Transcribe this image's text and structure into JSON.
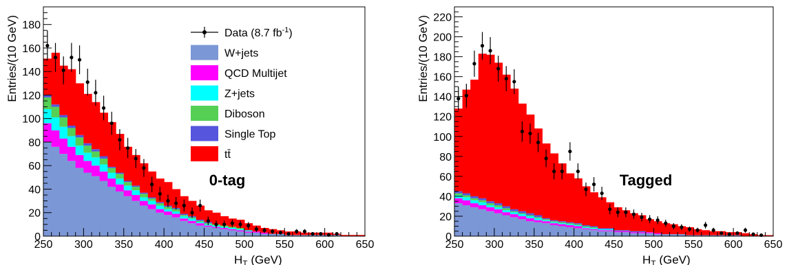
{
  "chart_data": [
    {
      "type": "bar",
      "stacked": true,
      "x": [
        255,
        265,
        275,
        285,
        295,
        305,
        315,
        325,
        335,
        345,
        355,
        365,
        375,
        385,
        395,
        405,
        415,
        425,
        435,
        445,
        455,
        465,
        475,
        485,
        495,
        505,
        515,
        525,
        535,
        545,
        555,
        565,
        575,
        585,
        595,
        605,
        615,
        625,
        635,
        645
      ],
      "xlim": [
        250,
        650
      ],
      "ylim": [
        0,
        195
      ],
      "xticks": [
        "250",
        "300",
        "350",
        "400",
        "450",
        "500",
        "550",
        "600",
        "650"
      ],
      "yticks": [
        "0",
        "20",
        "40",
        "60",
        "80",
        "100",
        "120",
        "140",
        "160",
        "180"
      ],
      "xlabel": "H",
      "xlabel_sub": "T",
      "xlabel_unit": "(GeV)",
      "ylabel": "Entries/(10 GeV)",
      "region_label": "0-tag",
      "series": [
        {
          "name": "W+jets",
          "color": "#7b97d6",
          "values": [
            80,
            76,
            70,
            64,
            58,
            54,
            51,
            47,
            42,
            38,
            34,
            30,
            26,
            23,
            20,
            18,
            16,
            13,
            11,
            9,
            8,
            7,
            6,
            5,
            4,
            3,
            3,
            2,
            2,
            2,
            1,
            1,
            1,
            1,
            1,
            1,
            1,
            0,
            0,
            0
          ]
        },
        {
          "name": "QCD Multijet",
          "color": "#ff00ff",
          "values": [
            16,
            14,
            13,
            12,
            11,
            10,
            9,
            8,
            7,
            6,
            5,
            5,
            4,
            4,
            3,
            3,
            3,
            2,
            2,
            2,
            1,
            1,
            1,
            1,
            1,
            1,
            1,
            1,
            0,
            0,
            0,
            0,
            0,
            0,
            0,
            0,
            0,
            0,
            0,
            0
          ]
        },
        {
          "name": "Z+jets",
          "color": "#00ffff",
          "values": [
            12,
            11,
            10,
            9,
            8,
            7,
            7,
            6,
            5,
            5,
            4,
            4,
            3,
            3,
            3,
            2,
            2,
            2,
            2,
            1,
            1,
            1,
            1,
            1,
            1,
            1,
            0,
            0,
            0,
            0,
            0,
            0,
            0,
            0,
            0,
            0,
            0,
            0,
            0,
            0
          ]
        },
        {
          "name": "Diboson",
          "color": "#55d055",
          "values": [
            10,
            9,
            8,
            7,
            7,
            6,
            5,
            5,
            4,
            4,
            3,
            3,
            3,
            2,
            2,
            2,
            2,
            1,
            1,
            1,
            1,
            1,
            1,
            1,
            1,
            0,
            0,
            0,
            0,
            0,
            0,
            0,
            0,
            0,
            0,
            0,
            0,
            0,
            0,
            0
          ]
        },
        {
          "name": "Single Top",
          "color": "#5555dd",
          "values": [
            2,
            2,
            2,
            2,
            2,
            2,
            2,
            2,
            1,
            1,
            1,
            1,
            1,
            1,
            1,
            1,
            1,
            1,
            1,
            1,
            1,
            0,
            0,
            0,
            0,
            0,
            0,
            0,
            0,
            0,
            0,
            0,
            0,
            0,
            0,
            0,
            0,
            0,
            0,
            0
          ]
        },
        {
          "name": "tt̄",
          "color": "#ff0000",
          "values": [
            31,
            44,
            42,
            48,
            44,
            42,
            40,
            37,
            38,
            33,
            29,
            26,
            25,
            22,
            20,
            20,
            16,
            15,
            13,
            12,
            10,
            10,
            8,
            7,
            7,
            6,
            5,
            4,
            4,
            3,
            3,
            3,
            2,
            2,
            2,
            2,
            1,
            1,
            1,
            1
          ]
        }
      ],
      "data_points": {
        "name": "Data (8.7 fb",
        "name_sup": "-1",
        "name_end": ")",
        "y": [
          162,
          152,
          141,
          152,
          150,
          131,
          122,
          109,
          96,
          82,
          75,
          66,
          58,
          44,
          36,
          30,
          28,
          26,
          20,
          26,
          13,
          10,
          10,
          11,
          10,
          9,
          6,
          5,
          4,
          3,
          2,
          4,
          4,
          2,
          2,
          1,
          2,
          0,
          0,
          0
        ]
      },
      "legend_position": "top-right"
    },
    {
      "type": "bar",
      "stacked": true,
      "x": [
        255,
        265,
        275,
        285,
        295,
        305,
        315,
        325,
        335,
        345,
        355,
        365,
        375,
        385,
        395,
        405,
        415,
        425,
        435,
        445,
        455,
        465,
        475,
        485,
        495,
        505,
        515,
        525,
        535,
        545,
        555,
        565,
        575,
        585,
        595,
        605,
        615,
        625,
        635,
        645
      ],
      "xlim": [
        250,
        650
      ],
      "ylim": [
        0,
        230
      ],
      "xticks": [
        "250",
        "300",
        "350",
        "400",
        "450",
        "500",
        "550",
        "600",
        "650"
      ],
      "yticks": [
        "0",
        "20",
        "40",
        "60",
        "80",
        "100",
        "120",
        "140",
        "160",
        "180",
        "200",
        "220"
      ],
      "xlabel": "H",
      "xlabel_sub": "T",
      "xlabel_unit": "(GeV)",
      "ylabel": "Entries/(10 GeV)",
      "region_label": "Tagged",
      "series": [
        {
          "name": "W+jets",
          "color": "#7b97d6",
          "values": [
            33,
            31,
            29,
            27,
            25,
            23,
            21,
            19,
            17,
            15,
            14,
            13,
            11,
            10,
            9,
            8,
            7,
            6,
            5,
            5,
            4,
            4,
            3,
            3,
            3,
            2,
            2,
            2,
            2,
            1,
            1,
            1,
            1,
            1,
            1,
            1,
            0,
            0,
            0,
            0
          ]
        },
        {
          "name": "QCD Multijet",
          "color": "#ff00ff",
          "values": [
            5,
            5,
            4,
            4,
            4,
            4,
            3,
            3,
            3,
            3,
            2,
            2,
            2,
            2,
            2,
            2,
            1,
            1,
            1,
            1,
            1,
            1,
            1,
            1,
            1,
            1,
            0,
            0,
            0,
            0,
            0,
            0,
            0,
            0,
            0,
            0,
            0,
            0,
            0,
            0
          ]
        },
        {
          "name": "Z+jets",
          "color": "#00ffff",
          "values": [
            3,
            3,
            3,
            3,
            2,
            2,
            2,
            2,
            2,
            2,
            2,
            1,
            1,
            1,
            1,
            1,
            1,
            1,
            1,
            1,
            0,
            0,
            0,
            0,
            0,
            0,
            0,
            0,
            0,
            0,
            0,
            0,
            0,
            0,
            0,
            0,
            0,
            0,
            0,
            0
          ]
        },
        {
          "name": "Diboson",
          "color": "#55d055",
          "values": [
            2,
            2,
            2,
            2,
            2,
            2,
            2,
            1,
            1,
            1,
            1,
            1,
            1,
            1,
            1,
            1,
            1,
            1,
            0,
            0,
            0,
            0,
            0,
            0,
            0,
            0,
            0,
            0,
            0,
            0,
            0,
            0,
            0,
            0,
            0,
            0,
            0,
            0,
            0,
            0
          ]
        },
        {
          "name": "Single Top",
          "color": "#5555dd",
          "values": [
            2,
            2,
            2,
            2,
            2,
            2,
            2,
            2,
            2,
            2,
            2,
            1,
            1,
            1,
            1,
            1,
            1,
            1,
            1,
            1,
            1,
            1,
            1,
            1,
            0,
            0,
            0,
            0,
            0,
            0,
            0,
            0,
            0,
            0,
            0,
            0,
            0,
            0,
            0,
            0
          ]
        },
        {
          "name": "tt̄",
          "color": "#ff0000",
          "values": [
            83,
            104,
            117,
            145,
            147,
            141,
            132,
            121,
            108,
            99,
            87,
            75,
            67,
            58,
            49,
            45,
            39,
            34,
            31,
            26,
            23,
            20,
            18,
            16,
            13,
            12,
            11,
            10,
            8,
            8,
            6,
            5,
            4,
            4,
            3,
            3,
            3,
            2,
            1,
            1
          ]
        }
      ],
      "data_points": {
        "name": "Data (8.7 fb",
        "name_sup": "-1",
        "name_end": ")",
        "y": [
          138,
          141,
          173,
          191,
          186,
          168,
          158,
          155,
          105,
          103,
          94,
          78,
          65,
          65,
          85,
          65,
          47,
          52,
          43,
          27,
          24,
          24,
          22,
          19,
          17,
          16,
          13,
          10,
          9,
          7,
          6,
          11,
          6,
          3,
          2,
          3,
          6,
          2,
          1,
          0
        ]
      }
    }
  ]
}
